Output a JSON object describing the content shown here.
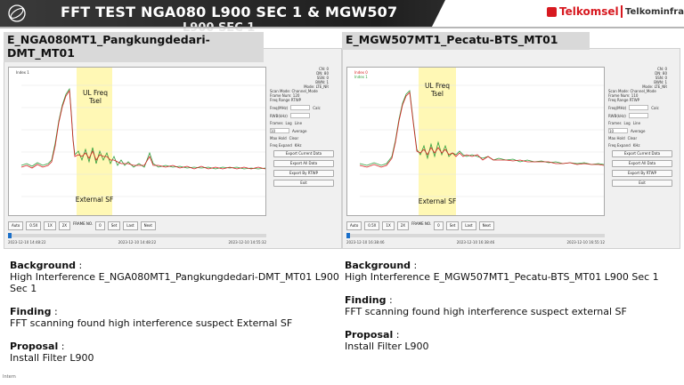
{
  "header": {
    "title": "FFT TEST NGA080 L900 SEC 1 & MGW507",
    "title_overflow": "L900 SEC 1",
    "brand_primary": "Telkomsel",
    "brand_secondary": "Telkominfra",
    "brand_color": "#d71920"
  },
  "panels": [
    {
      "site": "E_NGA080MT1_Pangkungdedari-DMT_MT01",
      "highlight_top": "UL Freq\nTsel",
      "highlight_bottom": "External SF",
      "legend": [
        "Index 1"
      ],
      "info": [
        "CN: 0",
        "DN: 80",
        "SSN: 0",
        "BWN: 1",
        "Mode: LTE_NR",
        "Scan Mode: Channel_Mode",
        "Frame Num: 120",
        "Freq Range RTWP"
      ],
      "buttons": [
        "Freq(MHz)",
        "Calc",
        "RWB(kHz)",
        "Frames",
        "Log",
        "Line",
        "10",
        "Average",
        "Max Hold",
        "Clear",
        "Freq Expand",
        "KHz",
        "Export Current Data",
        "Export All Data",
        "Export By RTWP",
        "Exit"
      ],
      "bottom": [
        "Auto",
        "0.5X",
        "1X",
        "2X",
        "FRAME NO.",
        "0",
        "Set",
        "Last",
        "Next"
      ],
      "times": [
        "2023-12-10 14:48:22",
        "2023-12-10 14:48:22",
        "2023-12-10 14:55:32"
      ]
    },
    {
      "site": "E_MGW507MT1_Pecatu-BTS_MT01",
      "highlight_top": "UL Freq\nTsel",
      "highlight_bottom": "External SF",
      "legend": [
        "Index 0",
        "Index 1"
      ],
      "info": [
        "CN: 0",
        "DN: 80",
        "SSN: 0",
        "BWN: 1",
        "Mode: LTE_NR",
        "Scan Mode: Channel_Mode",
        "Frame Num: 110",
        "Freq Range RTWP"
      ],
      "buttons": [
        "Freq(MHz)",
        "Calc",
        "RWB(kHz)",
        "Frames",
        "Log",
        "Line",
        "10",
        "Average",
        "Max Hold",
        "Clear",
        "Freq Expand",
        "KHz",
        "Export Current Data",
        "Export All Data",
        "Export By RTWP",
        "Exit"
      ],
      "bottom": [
        "Auto",
        "0.5X",
        "1X",
        "2X",
        "FRAME NO.",
        "0",
        "Set",
        "Last",
        "Next"
      ],
      "times": [
        "2023-12-10 16:38:46",
        "2023-12-10 16:38:46",
        "2023-12-10 16:55:12"
      ]
    }
  ],
  "notes": [
    {
      "background_label": "Background",
      "background_text": "High Interference E_NGA080MT1_Pangkungdedari-DMT_MT01 L900 Sec 1",
      "finding_label": "Finding",
      "finding_text": "FFT scanning found high interference suspect External SF",
      "proposal_label": "Proposal",
      "proposal_text": "Install Filter L900"
    },
    {
      "background_label": "Background",
      "background_text": "High Interference E_MGW507MT1_Pecatu-BTS_MT01 L900 Sec 1",
      "finding_label": "Finding",
      "finding_text": "FFT scanning found high interference suspect external SF",
      "proposal_label": "Proposal",
      "proposal_text": "Install Filter L900"
    }
  ],
  "footer": "Intern"
}
